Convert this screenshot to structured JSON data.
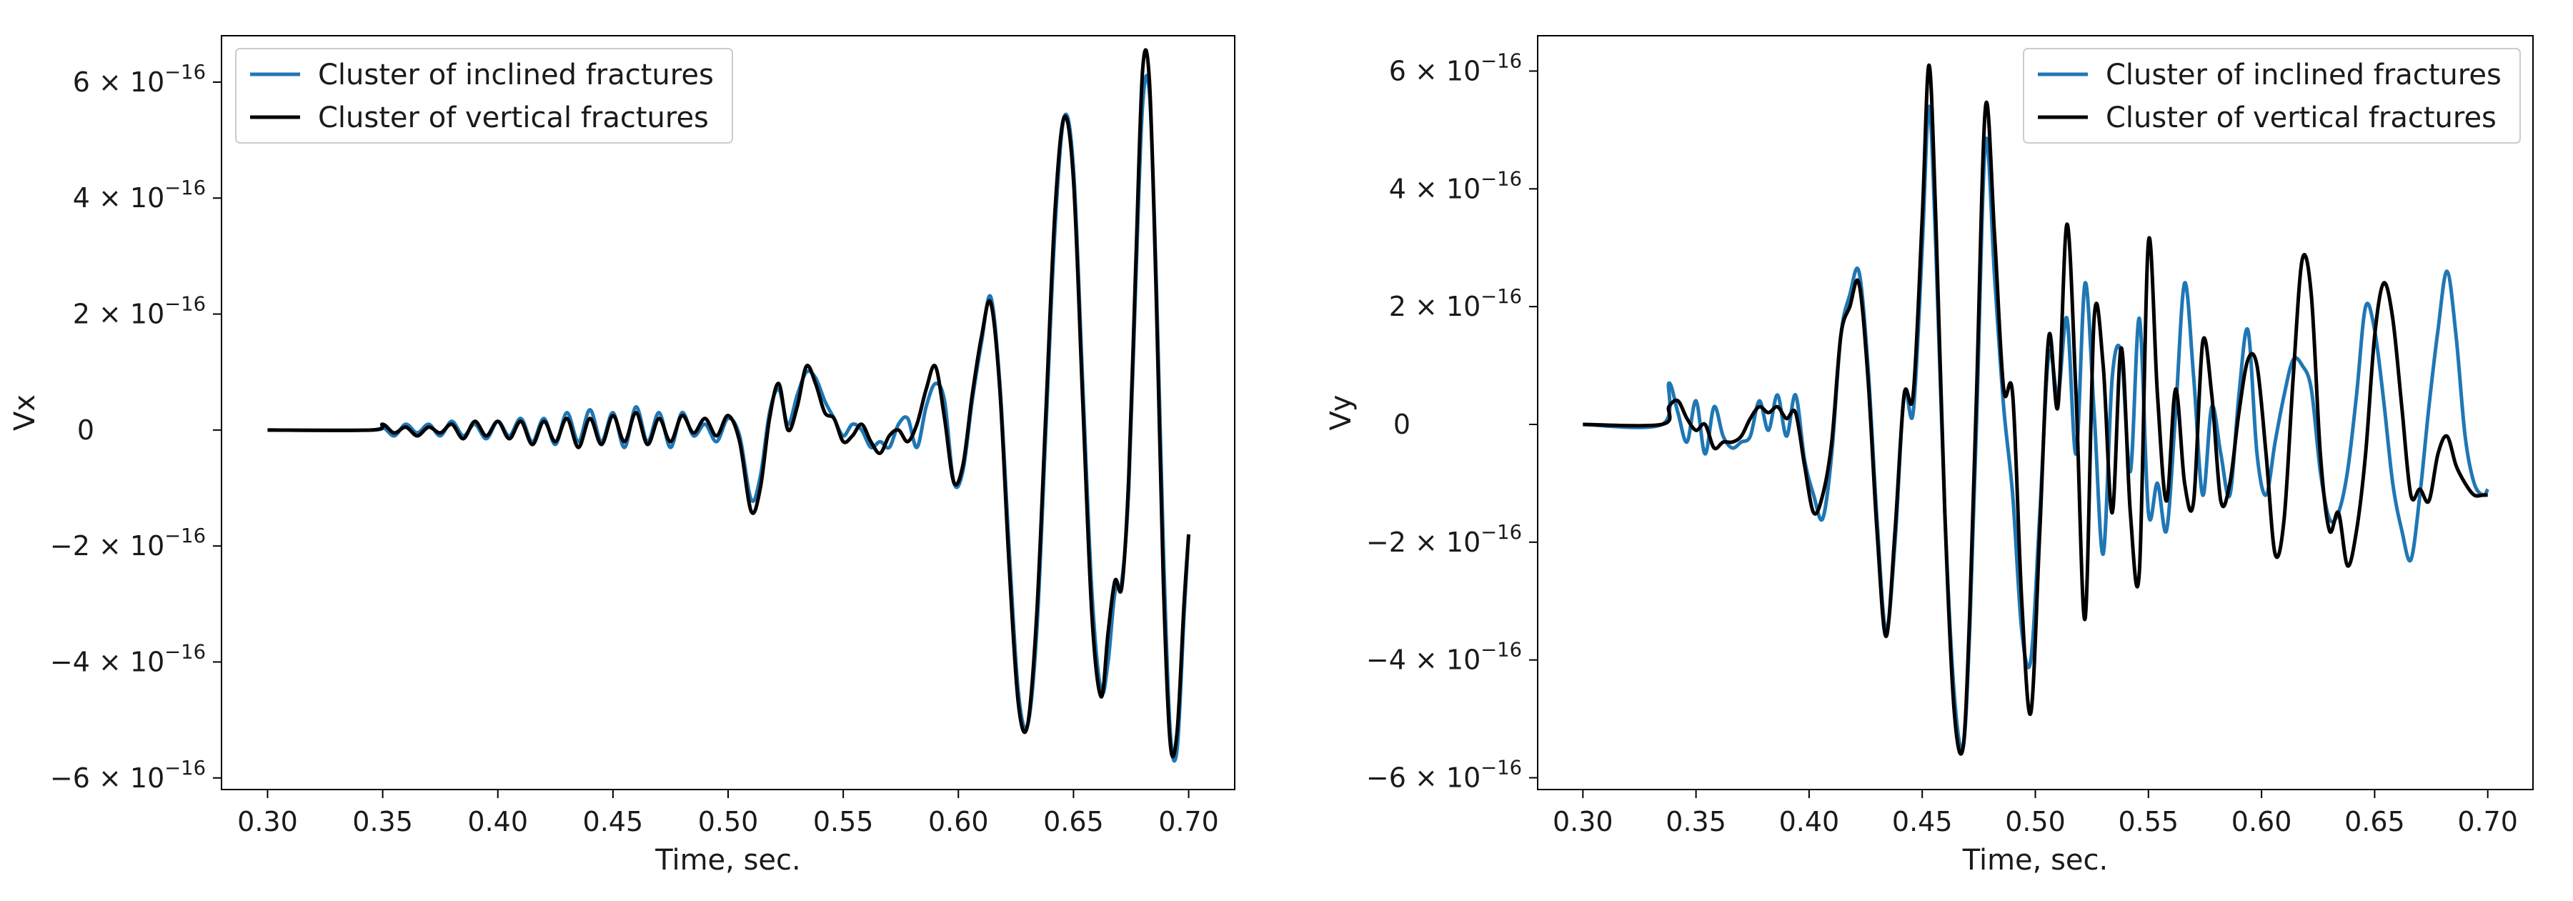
{
  "colors": {
    "inclined": "#1f77b4",
    "vertical": "#000000",
    "axes": "#000000",
    "legend_border": "#cccccc",
    "background": "#ffffff"
  },
  "chart_data": [
    {
      "type": "line",
      "xlabel": "Time, sec.",
      "ylabel": "Vx",
      "xlim": [
        0.28,
        0.72
      ],
      "ylim": [
        -6.2e-16,
        6.8e-16
      ],
      "xticks": [
        0.3,
        0.35,
        0.4,
        0.45,
        0.5,
        0.55,
        0.6,
        0.65,
        0.7
      ],
      "xtick_labels": [
        "0.30",
        "0.35",
        "0.40",
        "0.45",
        "0.50",
        "0.55",
        "0.60",
        "0.65",
        "0.70"
      ],
      "yticks": [
        {
          "value": 6e-16,
          "mant": "6",
          "exp": "−16"
        },
        {
          "value": 4e-16,
          "mant": "4",
          "exp": "−16"
        },
        {
          "value": 2e-16,
          "mant": "2",
          "exp": "−16"
        },
        {
          "value": 0,
          "mant": "0",
          "exp": ""
        },
        {
          "value": -2e-16,
          "mant": "−2",
          "exp": "−16"
        },
        {
          "value": -4e-16,
          "mant": "−4",
          "exp": "−16"
        },
        {
          "value": -6e-16,
          "mant": "−6",
          "exp": "−16"
        }
      ],
      "grid": false,
      "legend_position": "top-left",
      "series": [
        {
          "name": "Cluster of inclined fractures",
          "color": "#1f77b4",
          "x": [
            0.3,
            0.345,
            0.35,
            0.355,
            0.36,
            0.365,
            0.37,
            0.375,
            0.38,
            0.385,
            0.39,
            0.395,
            0.4,
            0.405,
            0.41,
            0.415,
            0.42,
            0.425,
            0.43,
            0.435,
            0.44,
            0.445,
            0.45,
            0.455,
            0.46,
            0.465,
            0.47,
            0.475,
            0.48,
            0.485,
            0.49,
            0.495,
            0.5,
            0.505,
            0.51,
            0.514,
            0.518,
            0.522,
            0.526,
            0.53,
            0.534,
            0.538,
            0.542,
            0.546,
            0.55,
            0.554,
            0.558,
            0.562,
            0.566,
            0.57,
            0.574,
            0.578,
            0.582,
            0.586,
            0.59,
            0.594,
            0.598,
            0.602,
            0.606,
            0.61,
            0.614,
            0.618,
            0.622,
            0.626,
            0.63,
            0.634,
            0.638,
            0.642,
            0.646,
            0.65,
            0.654,
            0.658,
            0.662,
            0.665,
            0.668,
            0.671,
            0.674,
            0.677,
            0.68,
            0.683,
            0.686,
            0.689,
            0.692,
            0.695,
            0.698,
            0.7
          ],
          "y": [
            0,
            0,
            5e-18,
            -1e-17,
            1e-17,
            -5e-18,
            1e-17,
            -1e-17,
            1.5e-17,
            -1e-17,
            1e-17,
            -1.5e-17,
            1.5e-17,
            -1e-17,
            2e-17,
            -2e-17,
            2e-17,
            -2.5e-17,
            3e-17,
            -2e-17,
            3.5e-17,
            -2e-17,
            3e-17,
            -3e-17,
            4e-17,
            -2e-17,
            3e-17,
            -3e-17,
            3e-17,
            -1e-17,
            1e-17,
            -2e-17,
            2e-17,
            -1e-17,
            -1.2e-16,
            -8e-17,
            3e-17,
            7e-17,
            1e-17,
            6e-17,
            1e-16,
            9e-17,
            5e-17,
            2e-17,
            -1e-17,
            1e-17,
            0.0,
            -3e-17,
            -2e-17,
            -3e-17,
            1e-17,
            2e-17,
            -3e-17,
            4e-17,
            8e-17,
            5e-17,
            -9e-17,
            -7e-17,
            5e-17,
            1.5e-16,
            2.3e-16,
            8e-17,
            -2e-16,
            -4.5e-16,
            -5.1e-16,
            -3.5e-16,
            0.0,
            3.5e-16,
            5.4e-16,
            4.5e-16,
            8e-17,
            -2.8e-16,
            -4.5e-16,
            -4e-16,
            -2.8e-16,
            -2.6e-16,
            -1e-16,
            2.5e-16,
            5.6e-16,
            5.8e-16,
            2.5e-16,
            -2e-16,
            -5.2e-16,
            -5.5e-16,
            -3.2e-16,
            -1.8e-16
          ]
        },
        {
          "name": "Cluster of vertical fractures",
          "color": "#000000",
          "x": [
            0.3,
            0.345,
            0.35,
            0.355,
            0.36,
            0.365,
            0.37,
            0.375,
            0.38,
            0.385,
            0.39,
            0.395,
            0.4,
            0.405,
            0.41,
            0.415,
            0.42,
            0.425,
            0.43,
            0.435,
            0.44,
            0.445,
            0.45,
            0.455,
            0.46,
            0.465,
            0.47,
            0.475,
            0.48,
            0.485,
            0.49,
            0.495,
            0.5,
            0.505,
            0.51,
            0.514,
            0.518,
            0.522,
            0.526,
            0.53,
            0.534,
            0.538,
            0.542,
            0.546,
            0.55,
            0.554,
            0.558,
            0.562,
            0.566,
            0.57,
            0.574,
            0.578,
            0.582,
            0.586,
            0.59,
            0.594,
            0.598,
            0.602,
            0.606,
            0.61,
            0.614,
            0.618,
            0.622,
            0.626,
            0.63,
            0.634,
            0.638,
            0.642,
            0.646,
            0.65,
            0.654,
            0.658,
            0.662,
            0.665,
            0.668,
            0.671,
            0.674,
            0.677,
            0.68,
            0.683,
            0.686,
            0.689,
            0.692,
            0.695,
            0.698,
            0.7
          ],
          "y": [
            0,
            0,
            1e-17,
            -5e-18,
            5e-18,
            -1e-17,
            5e-18,
            -5e-18,
            1e-17,
            -1.5e-17,
            1.5e-17,
            -1e-17,
            1.5e-17,
            -1.5e-17,
            1.5e-17,
            -2.5e-17,
            1.5e-17,
            -2e-17,
            2e-17,
            -3e-17,
            2e-17,
            -2.5e-17,
            2.5e-17,
            -2e-17,
            3e-17,
            -2.5e-17,
            2e-17,
            -2e-17,
            2.5e-17,
            -5e-18,
            2e-17,
            -1e-17,
            2.5e-17,
            -2e-17,
            -1.4e-16,
            -1e-16,
            2e-17,
            8e-17,
            0.0,
            4e-17,
            1.1e-16,
            8e-17,
            3e-17,
            2e-17,
            -2e-17,
            -1e-17,
            1e-17,
            -2e-17,
            -4e-17,
            -1e-17,
            0.0,
            -2e-17,
            1e-17,
            7e-17,
            1.1e-16,
            2e-17,
            -9e-17,
            -6e-17,
            6e-17,
            1.6e-16,
            2.2e-16,
            7e-17,
            -2.3e-16,
            -4.7e-16,
            -5.1e-16,
            -3.2e-16,
            3e-17,
            3.8e-16,
            5.4e-16,
            4.3e-16,
            5e-17,
            -3.2e-16,
            -4.6e-16,
            -3.5e-16,
            -2.6e-16,
            -2.7e-16,
            -8e-17,
            2.8e-16,
            6.2e-16,
            6e-16,
            2.2e-16,
            -2.6e-16,
            -5.4e-16,
            -5.2e-16,
            -3e-16,
            -1.8e-16
          ]
        }
      ]
    },
    {
      "type": "line",
      "xlabel": "Time, sec.",
      "ylabel": "Vy",
      "xlim": [
        0.28,
        0.72
      ],
      "ylim": [
        -6.2e-16,
        6.6e-16
      ],
      "xticks": [
        0.3,
        0.35,
        0.4,
        0.45,
        0.5,
        0.55,
        0.6,
        0.65,
        0.7
      ],
      "xtick_labels": [
        "0.30",
        "0.35",
        "0.40",
        "0.45",
        "0.50",
        "0.55",
        "0.60",
        "0.65",
        "0.70"
      ],
      "yticks": [
        {
          "value": 6e-16,
          "mant": "6",
          "exp": "−16"
        },
        {
          "value": 4e-16,
          "mant": "4",
          "exp": "−16"
        },
        {
          "value": 2e-16,
          "mant": "2",
          "exp": "−16"
        },
        {
          "value": 0,
          "mant": "0",
          "exp": ""
        },
        {
          "value": -2e-16,
          "mant": "−2",
          "exp": "−16"
        },
        {
          "value": -4e-16,
          "mant": "−4",
          "exp": "−16"
        },
        {
          "value": -6e-16,
          "mant": "−6",
          "exp": "−16"
        }
      ],
      "grid": false,
      "legend_position": "top-right",
      "series": [
        {
          "name": "Cluster of inclined fractures",
          "color": "#1f77b4",
          "x": [
            0.3,
            0.335,
            0.338,
            0.342,
            0.346,
            0.35,
            0.354,
            0.358,
            0.362,
            0.366,
            0.37,
            0.374,
            0.378,
            0.382,
            0.386,
            0.39,
            0.394,
            0.398,
            0.402,
            0.406,
            0.41,
            0.414,
            0.418,
            0.422,
            0.426,
            0.43,
            0.434,
            0.438,
            0.442,
            0.446,
            0.45,
            0.453,
            0.456,
            0.46,
            0.464,
            0.468,
            0.471,
            0.474,
            0.478,
            0.482,
            0.486,
            0.49,
            0.494,
            0.498,
            0.502,
            0.506,
            0.51,
            0.514,
            0.518,
            0.522,
            0.526,
            0.53,
            0.534,
            0.538,
            0.542,
            0.546,
            0.55,
            0.554,
            0.558,
            0.562,
            0.566,
            0.57,
            0.574,
            0.578,
            0.582,
            0.586,
            0.59,
            0.594,
            0.598,
            0.602,
            0.606,
            0.61,
            0.614,
            0.618,
            0.622,
            0.626,
            0.63,
            0.634,
            0.638,
            0.642,
            0.646,
            0.65,
            0.654,
            0.658,
            0.662,
            0.666,
            0.67,
            0.674,
            0.678,
            0.682,
            0.686,
            0.69,
            0.694,
            0.698,
            0.7
          ],
          "y": [
            0,
            0,
            7e-17,
            2e-17,
            -3e-17,
            4e-17,
            -5e-17,
            3e-17,
            -2e-17,
            -4e-17,
            -3e-17,
            -2e-17,
            4e-17,
            -1e-17,
            5e-17,
            -2e-17,
            5e-17,
            -6e-17,
            -1.2e-16,
            -1.6e-16,
            -5e-17,
            1.5e-16,
            2.2e-16,
            2.6e-16,
            1e-16,
            -1.6e-16,
            -3.5e-16,
            -2e-16,
            5e-17,
            2e-17,
            3e-16,
            5.4e-16,
            3e-16,
            -1.5e-16,
            -4.5e-16,
            -5.5e-16,
            -3.5e-16,
            0.0,
            4.8e-16,
            2.5e-16,
            3e-17,
            -1.2e-16,
            -3.5e-16,
            -4e-16,
            -1.5e-16,
            1.2e-16,
            5e-17,
            1.8e-16,
            -5e-17,
            2.4e-16,
            2e-17,
            -2.2e-16,
            8e-17,
            1.2e-16,
            -8e-17,
            1.8e-16,
            -1.5e-16,
            -1e-16,
            -1.8e-16,
            2e-17,
            2.4e-16,
            8e-17,
            -1.2e-16,
            3e-17,
            -5e-17,
            -1.2e-16,
            5e-17,
            1.6e-16,
            -5e-17,
            -1.2e-16,
            -3e-17,
            5e-17,
            1.1e-16,
            1e-16,
            6e-17,
            -8e-17,
            -1.6e-16,
            -1.5e-16,
            -8e-17,
            5e-17,
            2e-16,
            1.6e-16,
            4e-17,
            -1e-16,
            -1.8e-16,
            -2.3e-16,
            -1.2e-16,
            3e-17,
            1.6e-16,
            2.6e-16,
            1.5e-16,
            -2e-17,
            -1e-16,
            -1.2e-16,
            -1.1e-16
          ]
        },
        {
          "name": "Cluster of vertical fractures",
          "color": "#000000",
          "x": [
            0.3,
            0.335,
            0.338,
            0.342,
            0.346,
            0.35,
            0.354,
            0.358,
            0.362,
            0.366,
            0.37,
            0.374,
            0.378,
            0.382,
            0.386,
            0.39,
            0.394,
            0.398,
            0.402,
            0.406,
            0.41,
            0.414,
            0.418,
            0.422,
            0.426,
            0.43,
            0.434,
            0.438,
            0.442,
            0.446,
            0.45,
            0.453,
            0.456,
            0.46,
            0.464,
            0.468,
            0.471,
            0.474,
            0.478,
            0.482,
            0.486,
            0.49,
            0.494,
            0.498,
            0.502,
            0.506,
            0.51,
            0.514,
            0.518,
            0.522,
            0.526,
            0.53,
            0.534,
            0.538,
            0.542,
            0.546,
            0.55,
            0.554,
            0.558,
            0.562,
            0.566,
            0.57,
            0.574,
            0.578,
            0.582,
            0.586,
            0.59,
            0.594,
            0.598,
            0.602,
            0.606,
            0.61,
            0.614,
            0.618,
            0.622,
            0.626,
            0.63,
            0.634,
            0.638,
            0.642,
            0.646,
            0.65,
            0.654,
            0.658,
            0.662,
            0.666,
            0.67,
            0.674,
            0.678,
            0.682,
            0.686,
            0.69,
            0.694,
            0.698,
            0.7
          ],
          "y": [
            0,
            0,
            3e-17,
            4e-17,
            1e-17,
            -1e-17,
            0.0,
            -4e-17,
            -3e-17,
            -3e-17,
            -2e-17,
            1e-17,
            3e-17,
            2e-17,
            3e-17,
            1e-17,
            2e-17,
            -7e-17,
            -1.5e-16,
            -1.2e-16,
            -3e-17,
            1.5e-16,
            2e-16,
            2.4e-16,
            8e-17,
            -1.8e-16,
            -3.6e-16,
            -1.8e-16,
            5e-17,
            5e-17,
            3.5e-16,
            6.1e-16,
            3.5e-16,
            -1.5e-16,
            -4.8e-16,
            -5.5e-16,
            -3.2e-16,
            5e-17,
            5.4e-16,
            3.2e-16,
            6e-17,
            5e-17,
            -3e-16,
            -4.9e-16,
            -1.8e-16,
            1.5e-16,
            3e-17,
            3.4e-16,
            5e-17,
            -3.3e-16,
            1.8e-16,
            1e-16,
            -1.5e-16,
            1.3e-16,
            -1.5e-16,
            -2.5e-16,
            3.1e-16,
            5e-17,
            -1.3e-16,
            6e-17,
            -1e-16,
            -1.3e-16,
            1.4e-16,
            5e-17,
            -1.3e-16,
            -1e-16,
            2e-17,
            1.1e-16,
            1e-16,
            -5e-17,
            -2.2e-16,
            -1.6e-16,
            8e-17,
            2.8e-16,
            2.2e-16,
            -5e-17,
            -1.8e-16,
            -1.5e-16,
            -2.4e-16,
            -1.8e-16,
            -5e-17,
            1.5e-16,
            2.4e-16,
            1.8e-16,
            3e-17,
            -1.2e-16,
            -1.1e-16,
            -1.3e-16,
            -5e-17,
            -2e-17,
            -7e-17,
            -1e-16,
            -1.2e-16,
            -1.2e-16,
            -1.2e-16
          ]
        }
      ]
    }
  ]
}
